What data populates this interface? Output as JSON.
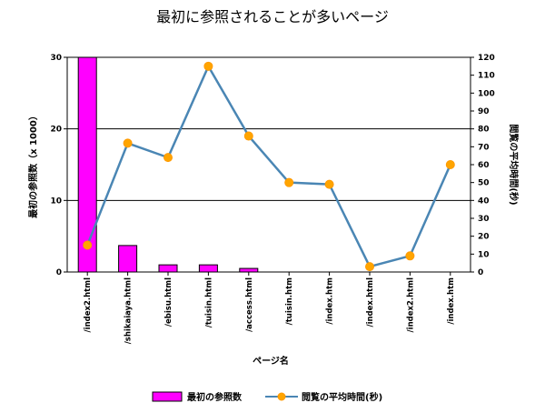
{
  "chart_data": {
    "type": "bar",
    "title": "最初に参照されることが多いページ",
    "xlabel": "ページ名",
    "ylabel": "最初の参照数（x 1000）",
    "y2label": "閲覧の平均時間(秒)",
    "categories": [
      "/index2.html",
      "/shikaiaya.html",
      "/ebisu.html",
      "/tuisin.html",
      "/access.html",
      "/tuisin.htm",
      "/index.htm",
      "/index.html",
      "/index2.html",
      "/index.htm"
    ],
    "ylim": [
      0,
      30
    ],
    "y2lim": [
      0,
      120
    ],
    "yticks": [
      0,
      10,
      20,
      30
    ],
    "y2ticks": [
      0,
      10,
      20,
      30,
      40,
      50,
      60,
      70,
      80,
      90,
      100,
      110,
      120
    ],
    "grid": true,
    "legend_position": "bottom",
    "series": [
      {
        "name": "最初の参照数",
        "type": "bar",
        "axis": "left",
        "color": "#ff00ff",
        "values": [
          30,
          3.7,
          1,
          1,
          0.5,
          0,
          0,
          0,
          0,
          0
        ]
      },
      {
        "name": "閲覧の平均時間(秒)",
        "type": "line",
        "axis": "right",
        "color": "#4a86b4",
        "marker_color": "#ffa500",
        "values": [
          15,
          72,
          64,
          115,
          76,
          50,
          49,
          3,
          9,
          60
        ]
      }
    ]
  }
}
